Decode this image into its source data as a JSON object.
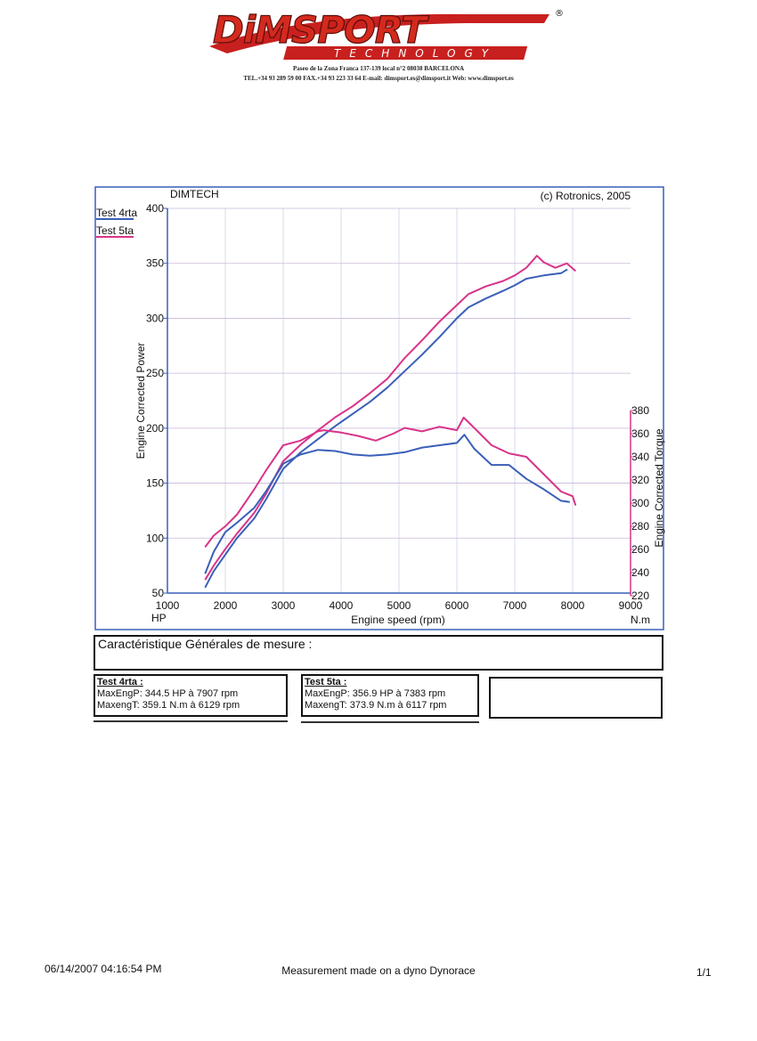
{
  "header": {
    "logo_primary": "DiMSPORT",
    "logo_secondary": "TECHNOLOGY",
    "registered_mark": "®",
    "address_line1": "Paseo de la Zona Franca 137-139 local n°2 08038 BARCELONA",
    "address_line2": "TEL.+34 93 289 59 00 FAX.+34 93 223 33 64  E-mail: dimsport.es@dimsport.it Web: www.dimsport.es"
  },
  "chart_data": {
    "type": "line",
    "title_left": "DIMTECH",
    "title_right": "(c) Rotronics, 2005",
    "xlabel": "Engine speed (rpm)",
    "x_unit_left": "HP",
    "x_unit_right": "N.m",
    "ylabel_left": "Engine Corrected Power",
    "ylabel_right": "Engine Corrected Torque",
    "xlim": [
      1000,
      9000
    ],
    "ylim_left": [
      50,
      400
    ],
    "ylim_right": [
      220,
      380
    ],
    "x_ticks": [
      1000,
      2000,
      3000,
      4000,
      5000,
      6000,
      7000,
      8000,
      9000
    ],
    "y_ticks_left": [
      50,
      100,
      150,
      200,
      250,
      300,
      350,
      400
    ],
    "y_ticks_right": [
      220,
      240,
      260,
      280,
      300,
      320,
      340,
      360,
      380
    ],
    "grid": true,
    "legend_position": "top-left",
    "series": [
      {
        "name": "Test 4rta",
        "color": "#3a5fb8",
        "axis": "left",
        "kind": "power",
        "x": [
          1650,
          1800,
          2000,
          2200,
          2500,
          2700,
          3000,
          3300,
          3600,
          3900,
          4200,
          4500,
          4800,
          5100,
          5400,
          5700,
          6000,
          6200,
          6500,
          6800,
          7000,
          7200,
          7500,
          7800,
          7907
        ],
        "y": [
          55,
          70,
          85,
          100,
          118,
          135,
          163,
          178,
          190,
          202,
          213,
          224,
          237,
          252,
          267,
          283,
          300,
          310,
          318,
          325,
          330,
          336,
          339,
          341,
          344.5
        ]
      },
      {
        "name": "Test 5ta",
        "color": "#d8348a",
        "axis": "left",
        "kind": "power",
        "x": [
          1650,
          1800,
          2000,
          2200,
          2500,
          2700,
          3000,
          3300,
          3600,
          3900,
          4200,
          4500,
          4800,
          5100,
          5400,
          5700,
          6000,
          6200,
          6500,
          6800,
          7000,
          7200,
          7383,
          7500,
          7700,
          7900,
          8050
        ],
        "y": [
          62,
          75,
          90,
          104,
          123,
          140,
          170,
          185,
          198,
          210,
          220,
          232,
          245,
          264,
          280,
          297,
          312,
          322,
          329,
          334,
          339,
          346,
          356.9,
          351,
          346,
          350,
          343
        ]
      },
      {
        "name": "Test 4rta",
        "color": "#3a5fb8",
        "axis": "right",
        "kind": "torque",
        "x": [
          1650,
          1800,
          2000,
          2200,
          2500,
          2700,
          3000,
          3300,
          3600,
          3900,
          4200,
          4500,
          4800,
          5100,
          5400,
          5700,
          6000,
          6129,
          6300,
          6600,
          6900,
          7200,
          7500,
          7800,
          7950
        ],
        "y": [
          239,
          258,
          275,
          283,
          296,
          310,
          334,
          342,
          346,
          345,
          342,
          341,
          342,
          344,
          348,
          350,
          352,
          359.1,
          347,
          333,
          333,
          321,
          312,
          302,
          301
        ]
      },
      {
        "name": "Test 5ta",
        "color": "#d8348a",
        "axis": "right",
        "kind": "torque",
        "x": [
          1650,
          1800,
          2000,
          2200,
          2500,
          2700,
          3000,
          3300,
          3600,
          3700,
          4000,
          4300,
          4600,
          4900,
          5100,
          5400,
          5700,
          6000,
          6117,
          6300,
          6600,
          6900,
          7200,
          7500,
          7800,
          8000,
          8050
        ],
        "y": [
          262,
          272,
          280,
          290,
          312,
          328,
          350,
          354,
          362,
          363,
          361,
          358,
          354,
          360,
          365,
          362,
          366,
          363,
          373.9,
          365,
          350,
          343,
          340,
          325,
          310,
          306,
          298
        ]
      }
    ]
  },
  "measurement": {
    "heading": "Caractéristique Générales de mesure :",
    "test4": {
      "title": "Test 4rta :",
      "line1": "MaxEngP: 344.5 HP à 7907 rpm",
      "line2": "MaxengT: 359.1 N.m à 6129 rpm"
    },
    "test5": {
      "title": "Test 5ta :",
      "line1": "MaxEngP: 356.9 HP à 7383 rpm",
      "line2": "MaxengT: 373.9 N.m à 6117 rpm"
    }
  },
  "footer": {
    "datetime": "06/14/2007 04:16:54 PM",
    "note": "Measurement made on a dyno Dynorace",
    "page": "1/1"
  }
}
